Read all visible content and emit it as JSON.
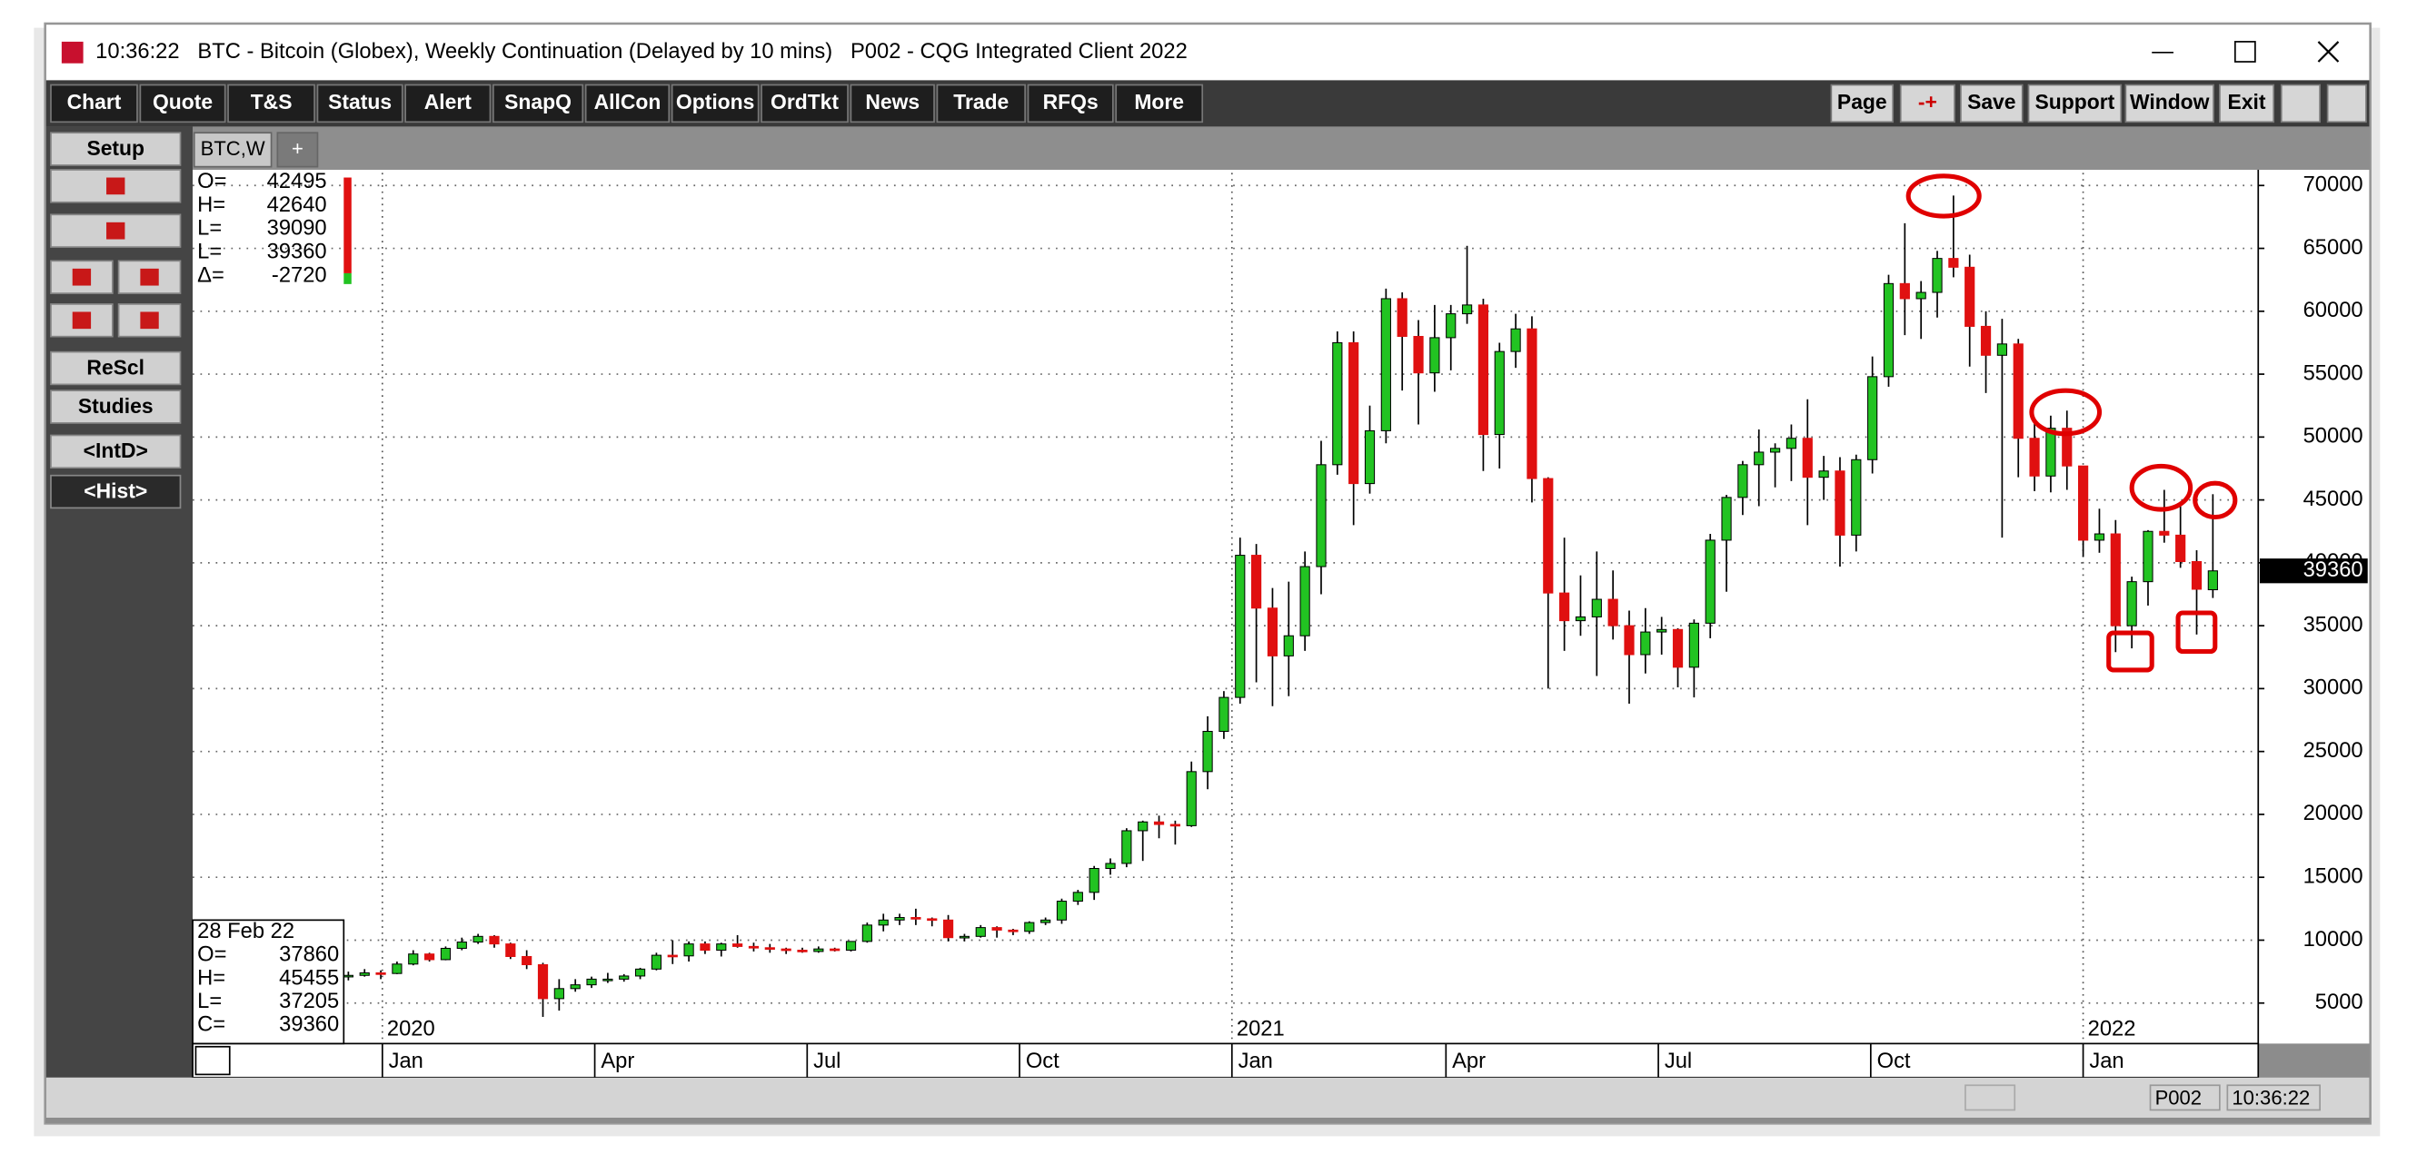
{
  "window": {
    "title": "10:36:22   BTC - Bitcoin (Globex), Weekly Continuation (Delayed by 10 mins)   P002 - CQG Integrated Client 2022"
  },
  "toolbar": {
    "left": [
      "Chart",
      "Quote",
      "T&S",
      "Status",
      "Alert",
      "SnapQ",
      "AllCon",
      "Options",
      "OrdTkt",
      "News",
      "Trade",
      "RFQs",
      "More"
    ],
    "right": [
      "Page",
      "-+",
      "Save",
      "Support",
      "Window",
      "Exit"
    ]
  },
  "sidebar": [
    "Setup",
    "ReScl",
    "Studies",
    "<IntD>",
    "<Hist>"
  ],
  "tabs": [
    "BTC,W",
    "+"
  ],
  "quote_box": [
    {
      "label": "O=",
      "value": 42495
    },
    {
      "label": "H=",
      "value": 42640
    },
    {
      "label": "L=",
      "value": 39090
    },
    {
      "label": "L=",
      "value": 39360
    },
    {
      "label": "Δ=",
      "value": -2720
    }
  ],
  "info_box": {
    "date": "28 Feb 22",
    "labels": [
      "O=",
      "H=",
      "L=",
      "C="
    ]
  },
  "status_bar": [
    "P002",
    "10:36:22"
  ],
  "chart_data": {
    "type": "candlestick",
    "up_color": "#22c322",
    "down_color": "#e01010",
    "grid": true,
    "ylim": [
      1900,
      71000
    ],
    "yticks": [
      5000,
      10000,
      15000,
      20000,
      25000,
      30000,
      35000,
      40000,
      45000,
      50000,
      55000,
      60000,
      65000,
      70000
    ],
    "xlim": [
      -9.6,
      117.8
    ],
    "xticks": [
      {
        "value": 2.1,
        "label": "Jan"
      },
      {
        "value": 15.2,
        "label": "Apr"
      },
      {
        "value": 28.3,
        "label": "Jul"
      },
      {
        "value": 41.4,
        "label": "Oct"
      },
      {
        "value": 54.5,
        "label": "Jan"
      },
      {
        "value": 67.7,
        "label": "Apr"
      },
      {
        "value": 80.8,
        "label": "Jul"
      },
      {
        "value": 93.9,
        "label": "Oct"
      },
      {
        "value": 107.0,
        "label": "Jan"
      }
    ],
    "year_labels": [
      {
        "value": 2.1,
        "label": "2020"
      },
      {
        "value": 54.5,
        "label": "2021"
      },
      {
        "value": 107.0,
        "label": "2022"
      }
    ],
    "candles": [
      [
        7100,
        7500,
        6800,
        7200
      ],
      [
        7200,
        7700,
        7100,
        7400
      ],
      [
        7400,
        7600,
        6900,
        7350
      ],
      [
        7350,
        8300,
        7300,
        8100
      ],
      [
        8100,
        9200,
        8000,
        8900
      ],
      [
        8900,
        9000,
        8300,
        8450
      ],
      [
        8450,
        9500,
        8400,
        9350
      ],
      [
        9350,
        10200,
        9200,
        9850
      ],
      [
        9850,
        10500,
        9700,
        10300
      ],
      [
        10300,
        10400,
        9400,
        9700
      ],
      [
        9700,
        9800,
        8500,
        8700
      ],
      [
        8700,
        9200,
        7700,
        8050
      ],
      [
        8050,
        8200,
        3900,
        5350
      ],
      [
        5350,
        6900,
        4400,
        6150
      ],
      [
        6150,
        6900,
        5900,
        6450
      ],
      [
        6450,
        7100,
        6200,
        6900
      ],
      [
        6900,
        7400,
        6600,
        6900
      ],
      [
        6900,
        7300,
        6700,
        7150
      ],
      [
        7150,
        7800,
        6900,
        7700
      ],
      [
        7700,
        9000,
        7600,
        8800
      ],
      [
        8800,
        10000,
        8100,
        8750
      ],
      [
        8750,
        9900,
        8300,
        9700
      ],
      [
        9700,
        9900,
        8900,
        9200
      ],
      [
        9200,
        9800,
        8700,
        9700
      ],
      [
        9700,
        10400,
        9400,
        9500
      ],
      [
        9500,
        9800,
        9100,
        9400
      ],
      [
        9400,
        9700,
        9000,
        9300
      ],
      [
        9300,
        9400,
        8900,
        9200
      ],
      [
        9200,
        9400,
        9000,
        9100
      ],
      [
        9100,
        9500,
        9000,
        9300
      ],
      [
        9300,
        9400,
        9100,
        9200
      ],
      [
        9200,
        9900,
        9100,
        9900
      ],
      [
        9900,
        11400,
        9800,
        11200
      ],
      [
        11200,
        12100,
        10700,
        11600
      ],
      [
        11600,
        12100,
        11200,
        11800
      ],
      [
        11800,
        12500,
        11200,
        11700
      ],
      [
        11700,
        11800,
        11100,
        11600
      ],
      [
        11600,
        12000,
        9900,
        10200
      ],
      [
        10200,
        10500,
        9900,
        10300
      ],
      [
        10300,
        11200,
        10200,
        11000
      ],
      [
        11000,
        11100,
        10200,
        10800
      ],
      [
        10800,
        10900,
        10400,
        10700
      ],
      [
        10700,
        11500,
        10500,
        11400
      ],
      [
        11400,
        11800,
        11200,
        11600
      ],
      [
        11600,
        13300,
        11300,
        13100
      ],
      [
        13100,
        14000,
        12800,
        13800
      ],
      [
        13800,
        15900,
        13200,
        15700
      ],
      [
        15700,
        16500,
        15200,
        16100
      ],
      [
        16100,
        18900,
        15800,
        18700
      ],
      [
        18700,
        19500,
        16300,
        19400
      ],
      [
        19400,
        19900,
        18100,
        19200
      ],
      [
        19200,
        19500,
        17600,
        19100
      ],
      [
        19100,
        24200,
        19000,
        23400
      ],
      [
        23400,
        27800,
        22000,
        26600
      ],
      [
        26600,
        29800,
        26000,
        29300
      ],
      [
        29300,
        42000,
        28800,
        40600
      ],
      [
        40600,
        41500,
        30500,
        36400
      ],
      [
        36400,
        38000,
        28600,
        32600
      ],
      [
        32600,
        38500,
        29400,
        34200
      ],
      [
        34200,
        40900,
        33000,
        39700
      ],
      [
        39700,
        49700,
        37500,
        47800
      ],
      [
        47800,
        58400,
        47000,
        57500
      ],
      [
        57500,
        58400,
        43000,
        46300
      ],
      [
        46300,
        52500,
        45500,
        50500
      ],
      [
        50500,
        61800,
        49500,
        61000
      ],
      [
        61000,
        61500,
        53700,
        58000
      ],
      [
        58000,
        59300,
        51000,
        55100
      ],
      [
        55100,
        60500,
        53600,
        57900
      ],
      [
        57900,
        60500,
        55300,
        59800
      ],
      [
        59800,
        65200,
        59000,
        60500
      ],
      [
        60500,
        61000,
        47300,
        50200
      ],
      [
        50200,
        57500,
        47500,
        56800
      ],
      [
        56800,
        59800,
        55500,
        58600
      ],
      [
        58600,
        59600,
        44800,
        46700
      ],
      [
        46700,
        46800,
        30000,
        37600
      ],
      [
        37600,
        42000,
        33000,
        35400
      ],
      [
        35400,
        39000,
        34200,
        35700
      ],
      [
        35700,
        40900,
        31000,
        37100
      ],
      [
        37100,
        39400,
        33900,
        35000
      ],
      [
        35000,
        36200,
        28800,
        32700
      ],
      [
        32700,
        36400,
        31200,
        34500
      ],
      [
        34500,
        35700,
        32700,
        34700
      ],
      [
        34700,
        34800,
        30100,
        31700
      ],
      [
        31700,
        35500,
        29300,
        35200
      ],
      [
        35200,
        42300,
        34000,
        41800
      ],
      [
        41800,
        45400,
        37700,
        45200
      ],
      [
        45200,
        48100,
        43800,
        47800
      ],
      [
        47800,
        50600,
        44500,
        48800
      ],
      [
        48800,
        49500,
        46000,
        49100
      ],
      [
        49100,
        51000,
        46500,
        49900
      ],
      [
        49900,
        53000,
        43000,
        46800
      ],
      [
        46800,
        48500,
        45000,
        47300
      ],
      [
        47300,
        48400,
        39700,
        42200
      ],
      [
        42200,
        48600,
        40900,
        48200
      ],
      [
        48200,
        56400,
        47100,
        54800
      ],
      [
        54800,
        62900,
        54000,
        62200
      ],
      [
        62200,
        67000,
        58100,
        61000
      ],
      [
        61000,
        62400,
        57800,
        61500
      ],
      [
        61500,
        64800,
        59500,
        64200
      ],
      [
        64200,
        69200,
        62700,
        63500
      ],
      [
        63500,
        64500,
        55600,
        58800
      ],
      [
        58800,
        60000,
        53500,
        56500
      ],
      [
        56500,
        59400,
        42000,
        57400
      ],
      [
        57400,
        57800,
        46800,
        49900
      ],
      [
        49900,
        51500,
        45700,
        46900
      ],
      [
        46900,
        51700,
        45600,
        50700
      ],
      [
        50700,
        52100,
        45800,
        47700
      ],
      [
        47700,
        47700,
        40500,
        41800
      ],
      [
        41800,
        44300,
        40800,
        42300
      ],
      [
        42300,
        43400,
        32900,
        35000
      ],
      [
        35000,
        38900,
        33200,
        38500
      ],
      [
        38500,
        42600,
        36600,
        42500
      ],
      [
        42500,
        45800,
        41600,
        42200
      ],
      [
        42200,
        44500,
        39600,
        40100
      ],
      [
        40100,
        41000,
        34300,
        37900
      ],
      [
        37860,
        45455,
        37205,
        39360
      ]
    ]
  }
}
